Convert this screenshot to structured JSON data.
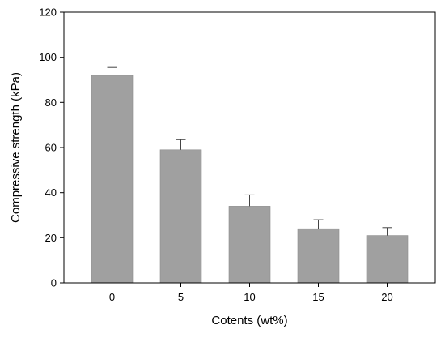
{
  "chart_data": {
    "type": "bar",
    "title": "",
    "xlabel": "Cotents (wt%)",
    "ylabel": "Compressive strength (kPa)",
    "categories": [
      "0",
      "5",
      "10",
      "15",
      "20"
    ],
    "values": [
      92,
      59,
      34,
      24,
      21
    ],
    "error_upper": [
      3.5,
      4.5,
      5,
      4,
      3.5
    ],
    "ylim": [
      0,
      120
    ],
    "yticks": [
      "0",
      "20",
      "40",
      "60",
      "80",
      "100",
      "120"
    ],
    "grid": false,
    "legend": "none",
    "bar_color": "#a0a0a0",
    "axis_color": "#000000"
  }
}
